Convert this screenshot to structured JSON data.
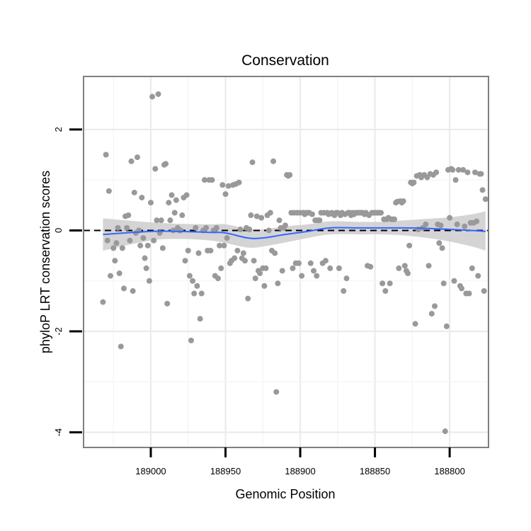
{
  "chart_data": {
    "type": "scatter",
    "title": "Conservation",
    "xlabel": "Genomic Position",
    "ylabel": "phyloP LRT conservation scores",
    "x_reversed": true,
    "xlim": [
      189045,
      188774
    ],
    "ylim": [
      -4.3,
      3.05
    ],
    "xticks": [
      189000,
      188950,
      188900,
      188850,
      188800
    ],
    "xtick_labels": [
      "189000",
      "188950",
      "188900",
      "188850",
      "188800"
    ],
    "yticks": [
      2,
      0,
      -2,
      -4
    ],
    "ytick_labels": [
      "2",
      "0",
      "-2",
      "-4"
    ],
    "grid": true,
    "reference_line": {
      "y": 0,
      "style": "dashed"
    },
    "colors": {
      "points": "#999999",
      "smooth": "#3366ff",
      "band": "#cccccc",
      "panel_border": "#7f7f7f",
      "grid": "#ebebeb"
    },
    "series": [
      {
        "values": [
          [
            189032,
            -1.42
          ],
          [
            189030,
            1.5
          ],
          [
            189029,
            -0.2
          ],
          [
            189028,
            0.78
          ],
          [
            189027,
            -0.9
          ],
          [
            189025,
            -0.35
          ],
          [
            189024,
            -0.6
          ],
          [
            189023,
            -0.25
          ],
          [
            189022,
            0.05
          ],
          [
            189021,
            -0.85
          ],
          [
            189020,
            -2.3
          ],
          [
            189019,
            -0.35
          ],
          [
            189018,
            -1.15
          ],
          [
            189017,
            0.28
          ],
          [
            189016,
            0.05
          ],
          [
            189015,
            0.3
          ],
          [
            189014,
            -0.2
          ],
          [
            189013,
            1.37
          ],
          [
            189012,
            -1.2
          ],
          [
            189011,
            0.75
          ],
          [
            189010,
            -0.05
          ],
          [
            189009,
            1.45
          ],
          [
            189008,
            0.0
          ],
          [
            189007,
            -0.3
          ],
          [
            189006,
            0.65
          ],
          [
            189005,
            -0.15
          ],
          [
            189004,
            -0.55
          ],
          [
            189003,
            -0.75
          ],
          [
            189002,
            -0.3
          ],
          [
            189001,
            -1.0
          ],
          [
            189000,
            0.55
          ],
          [
            188999,
            2.65
          ],
          [
            188998,
            -0.2
          ],
          [
            188997,
            1.22
          ],
          [
            188996,
            0.2
          ],
          [
            188995,
            2.7
          ],
          [
            188994,
            -0.05
          ],
          [
            188993,
            0.2
          ],
          [
            188992,
            -0.35
          ],
          [
            188991,
            1.3
          ],
          [
            188990,
            1.32
          ],
          [
            188989,
            -1.45
          ],
          [
            188988,
            0.55
          ],
          [
            188987,
            0.2
          ],
          [
            188986,
            0.7
          ],
          [
            188985,
            0.0
          ],
          [
            188984,
            0.35
          ],
          [
            188983,
            0.6
          ],
          [
            188982,
            0.05
          ],
          [
            188981,
            0.0
          ],
          [
            188980,
            0.0
          ],
          [
            188979,
            0.3
          ],
          [
            188978,
            0.65
          ],
          [
            188977,
            -0.6
          ],
          [
            188976,
            0.7
          ],
          [
            188975,
            -0.4
          ],
          [
            188974,
            -0.9
          ],
          [
            188973,
            -2.18
          ],
          [
            188972,
            -1.0
          ],
          [
            188971,
            -1.25
          ],
          [
            188970,
            0.05
          ],
          [
            188969,
            -1.1
          ],
          [
            188968,
            -0.45
          ],
          [
            188967,
            -1.75
          ],
          [
            188966,
            -1.25
          ],
          [
            188965,
            0.0
          ],
          [
            188964,
            1.0
          ],
          [
            188963,
            0.05
          ],
          [
            188962,
            -0.4
          ],
          [
            188961,
            1.0
          ],
          [
            188960,
            -0.4
          ],
          [
            188959,
            1.0
          ],
          [
            188958,
            0.0
          ],
          [
            188957,
            -0.9
          ],
          [
            188956,
            0.05
          ],
          [
            188955,
            -0.95
          ],
          [
            188954,
            -0.3
          ],
          [
            188953,
            -0.75
          ],
          [
            188952,
            0.9
          ],
          [
            188951,
            -0.3
          ],
          [
            188950,
            0.72
          ],
          [
            188949,
            -0.15
          ],
          [
            188948,
            0.88
          ],
          [
            188947,
            -0.65
          ],
          [
            188946,
            -0.6
          ],
          [
            188945,
            0.9
          ],
          [
            188944,
            -0.55
          ],
          [
            188943,
            0.92
          ],
          [
            188942,
            -0.4
          ],
          [
            188941,
            0.95
          ],
          [
            188940,
            0.02
          ],
          [
            188939,
            -0.55
          ],
          [
            188938,
            -0.45
          ],
          [
            188937,
            -0.6
          ],
          [
            188936,
            0.05
          ],
          [
            188935,
            -1.35
          ],
          [
            188934,
            0.02
          ],
          [
            188933,
            0.3
          ],
          [
            188932,
            1.35
          ],
          [
            188931,
            -0.6
          ],
          [
            188930,
            -0.95
          ],
          [
            188929,
            0.28
          ],
          [
            188928,
            -0.8
          ],
          [
            188927,
            -0.85
          ],
          [
            188926,
            0.25
          ],
          [
            188925,
            -0.75
          ],
          [
            188924,
            -1.1
          ],
          [
            188923,
            -0.75
          ],
          [
            188922,
            0.3
          ],
          [
            188921,
            0.0
          ],
          [
            188920,
            0.35
          ],
          [
            188919,
            -0.4
          ],
          [
            188918,
            1.37
          ],
          [
            188917,
            -0.45
          ],
          [
            188916,
            -3.2
          ],
          [
            188915,
            -1.05
          ],
          [
            188914,
            0.2
          ],
          [
            188913,
            0.05
          ],
          [
            188912,
            -0.8
          ],
          [
            188911,
            0.05
          ],
          [
            188910,
            0.1
          ],
          [
            188909,
            1.1
          ],
          [
            188908,
            1.08
          ],
          [
            188907,
            1.1
          ],
          [
            188906,
            0.35
          ],
          [
            188905,
            -0.75
          ],
          [
            188904,
            0.35
          ],
          [
            188903,
            -0.65
          ],
          [
            188902,
            0.35
          ],
          [
            188901,
            -0.65
          ],
          [
            188900,
            0.35
          ],
          [
            188899,
            -0.9
          ],
          [
            188898,
            0.35
          ],
          [
            188897,
            0.32
          ],
          [
            188896,
            0.35
          ],
          [
            188895,
            0.35
          ],
          [
            188894,
            0.35
          ],
          [
            188893,
            -0.65
          ],
          [
            188892,
            0.32
          ],
          [
            188891,
            -0.8
          ],
          [
            188890,
            0.2
          ],
          [
            188889,
            -0.9
          ],
          [
            188888,
            0.2
          ],
          [
            188887,
            0.2
          ],
          [
            188886,
            0.35
          ],
          [
            188885,
            -0.65
          ],
          [
            188884,
            0.35
          ],
          [
            188883,
            -0.6
          ],
          [
            188882,
            0.35
          ],
          [
            188881,
            0.32
          ],
          [
            188880,
            -0.75
          ],
          [
            188879,
            0.35
          ],
          [
            188878,
            0.32
          ],
          [
            188877,
            0.3
          ],
          [
            188876,
            0.35
          ],
          [
            188875,
            0.35
          ],
          [
            188874,
            -0.75
          ],
          [
            188873,
            0.3
          ],
          [
            188872,
            0.35
          ],
          [
            188871,
            -1.2
          ],
          [
            188870,
            0.32
          ],
          [
            188869,
            -0.95
          ],
          [
            188868,
            0.35
          ],
          [
            188867,
            0.35
          ],
          [
            188866,
            0.3
          ],
          [
            188865,
            0.35
          ],
          [
            188864,
            0.32
          ],
          [
            188863,
            0.35
          ],
          [
            188862,
            0.35
          ],
          [
            188861,
            0.35
          ],
          [
            188860,
            0.35
          ],
          [
            188859,
            0.35
          ],
          [
            188858,
            0.35
          ],
          [
            188857,
            0.32
          ],
          [
            188856,
            0.35
          ],
          [
            188855,
            -0.7
          ],
          [
            188854,
            0.3
          ],
          [
            188853,
            -0.72
          ],
          [
            188852,
            0.35
          ],
          [
            188851,
            0.35
          ],
          [
            188850,
            0.35
          ],
          [
            188849,
            0.35
          ],
          [
            188848,
            0.35
          ],
          [
            188847,
            0.35
          ],
          [
            188846,
            0.35
          ],
          [
            188845,
            -1.05
          ],
          [
            188844,
            0.22
          ],
          [
            188843,
            -1.2
          ],
          [
            188842,
            0.22
          ],
          [
            188841,
            0.25
          ],
          [
            188840,
            -1.05
          ],
          [
            188839,
            0.22
          ],
          [
            188838,
            0.22
          ],
          [
            188837,
            0.22
          ],
          [
            188836,
            0.55
          ],
          [
            188835,
            0.57
          ],
          [
            188834,
            -0.75
          ],
          [
            188833,
            0.58
          ],
          [
            188832,
            0.55
          ],
          [
            188831,
            0.58
          ],
          [
            188830,
            -0.7
          ],
          [
            188829,
            -0.8
          ],
          [
            188828,
            -0.85
          ],
          [
            188827,
            -0.3
          ],
          [
            188826,
            0.95
          ],
          [
            188825,
            0.93
          ],
          [
            188824,
            0.95
          ],
          [
            188823,
            -1.85
          ],
          [
            188822,
            1.08
          ],
          [
            188821,
            0.02
          ],
          [
            188820,
            1.1
          ],
          [
            188819,
            1.05
          ],
          [
            188818,
            0.05
          ],
          [
            188817,
            1.1
          ],
          [
            188816,
            0.12
          ],
          [
            188815,
            1.05
          ],
          [
            188814,
            -0.7
          ],
          [
            188813,
            1.12
          ],
          [
            188812,
            -1.65
          ],
          [
            188811,
            1.1
          ],
          [
            188810,
            -1.5
          ],
          [
            188809,
            1.15
          ],
          [
            188808,
            0.12
          ],
          [
            188807,
            -0.25
          ],
          [
            188806,
            0.1
          ],
          [
            188805,
            -0.35
          ],
          [
            188804,
            -1.05
          ],
          [
            188803,
            -3.98
          ],
          [
            188802,
            -1.9
          ],
          [
            188801,
            1.2
          ],
          [
            188800,
            0.25
          ],
          [
            188799,
            1.22
          ],
          [
            188798,
            1.2
          ],
          [
            188797,
            -1.0
          ],
          [
            188796,
            1.0
          ],
          [
            188795,
            0.12
          ],
          [
            188794,
            1.2
          ],
          [
            188793,
            -1.1
          ],
          [
            188792,
            -1.15
          ],
          [
            188791,
            1.2
          ],
          [
            188790,
            0.08
          ],
          [
            188789,
            -1.25
          ],
          [
            188788,
            1.15
          ],
          [
            188787,
            -1.25
          ],
          [
            188786,
            0.15
          ],
          [
            188785,
            -0.75
          ],
          [
            188784,
            0.15
          ],
          [
            188783,
            1.15
          ],
          [
            188782,
            0.18
          ],
          [
            188781,
            -0.9
          ],
          [
            188780,
            1.12
          ],
          [
            188779,
            1.12
          ],
          [
            188778,
            0.8
          ],
          [
            188777,
            -1.2
          ],
          [
            188776,
            0.62
          ]
        ]
      }
    ],
    "smooth": {
      "x": [
        189032,
        189000,
        188980,
        188960,
        188950,
        188935,
        188925,
        188910,
        188895,
        188880,
        188860,
        188845,
        188830,
        188815,
        188800,
        188785,
        188776
      ],
      "y": [
        -0.08,
        -0.02,
        -0.02,
        -0.04,
        -0.05,
        -0.15,
        -0.15,
        -0.08,
        -0.02,
        0.05,
        0.05,
        0.05,
        0.05,
        0.04,
        0.02,
        0.0,
        -0.02
      ],
      "ci_low": [
        -0.4,
        -0.2,
        -0.17,
        -0.2,
        -0.25,
        -0.34,
        -0.32,
        -0.24,
        -0.15,
        -0.08,
        -0.08,
        -0.08,
        -0.1,
        -0.15,
        -0.22,
        -0.32,
        -0.4
      ],
      "ci_high": [
        0.24,
        0.16,
        0.13,
        0.12,
        0.12,
        0.03,
        0.02,
        0.08,
        0.12,
        0.18,
        0.17,
        0.17,
        0.2,
        0.23,
        0.26,
        0.32,
        0.38
      ]
    }
  }
}
